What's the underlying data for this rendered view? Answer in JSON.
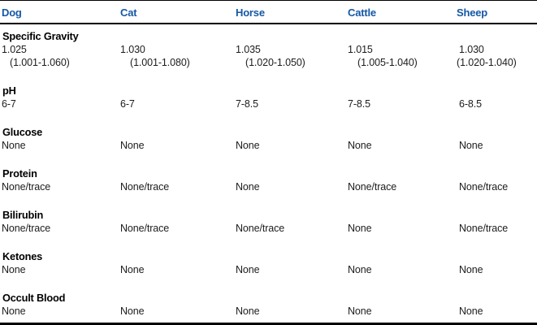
{
  "accent_color": "#1457a5",
  "table": {
    "columns": [
      "Dog",
      "Cat",
      "Horse",
      "Cattle",
      "Sheep"
    ],
    "sections": [
      {
        "label": "Specific Gravity",
        "rows": [
          [
            "1.025",
            "1.030",
            "1.035",
            "1.015",
            "1.030"
          ],
          [
            "(1.001-1.060)",
            "(1.001-1.080)",
            "(1.020-1.050)",
            "(1.005-1.040)",
            "(1.020-1.040)"
          ]
        ]
      },
      {
        "label": "pH",
        "rows": [
          [
            "6-7",
            "6-7",
            "7-8.5",
            "7-8.5",
            "6-8.5"
          ]
        ]
      },
      {
        "label": "Glucose",
        "rows": [
          [
            "None",
            "None",
            "None",
            "None",
            "None"
          ]
        ]
      },
      {
        "label": "Protein",
        "rows": [
          [
            "None/trace",
            "None/trace",
            "None",
            "None/trace",
            "None/trace"
          ]
        ]
      },
      {
        "label": "Bilirubin",
        "rows": [
          [
            "None/trace",
            "None/trace",
            "None/trace",
            "None",
            "None/trace"
          ]
        ]
      },
      {
        "label": "Ketones",
        "rows": [
          [
            "None",
            "None",
            "None",
            "None",
            "None"
          ]
        ]
      },
      {
        "label": "Occult Blood",
        "rows": [
          [
            "None",
            "None",
            "None",
            "None",
            "None"
          ]
        ]
      }
    ]
  }
}
